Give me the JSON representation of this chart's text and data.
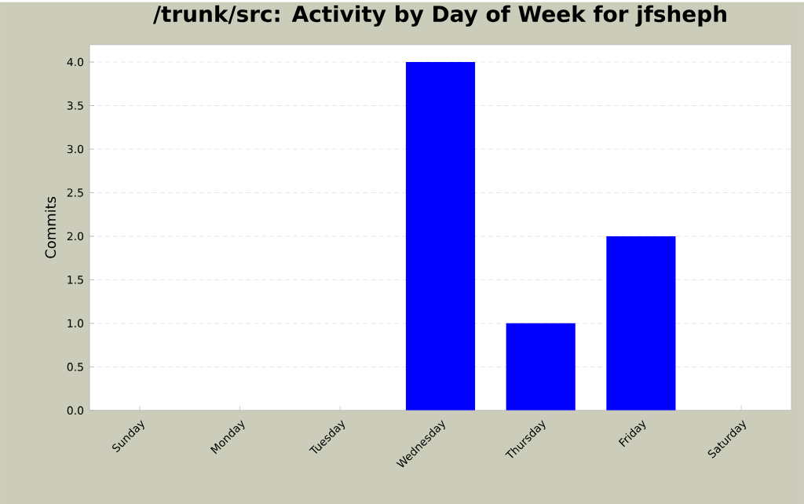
{
  "chart_data": {
    "type": "bar",
    "title": "/trunk/src: Activity by Day of Week for jfsheph",
    "ylabel": "Commits",
    "categories": [
      "Sunday",
      "Monday",
      "Tuesday",
      "Wednesday",
      "Thursday",
      "Friday",
      "Saturday"
    ],
    "values": [
      0,
      0,
      0,
      4,
      1,
      2,
      0
    ],
    "color": "#0000ff",
    "ylim": [
      0,
      4.2
    ],
    "yticks": [
      {
        "value": 0,
        "label": "0.0"
      },
      {
        "value": 0.5,
        "label": "0.5"
      },
      {
        "value": 1,
        "label": "1.0"
      },
      {
        "value": 1.5,
        "label": "1.5"
      },
      {
        "value": 2,
        "label": "2.0"
      },
      {
        "value": 2.5,
        "label": "2.5"
      },
      {
        "value": 3,
        "label": "3.0"
      },
      {
        "value": 3.5,
        "label": "3.5"
      },
      {
        "value": 4,
        "label": "4.0"
      }
    ],
    "grid": "y"
  }
}
